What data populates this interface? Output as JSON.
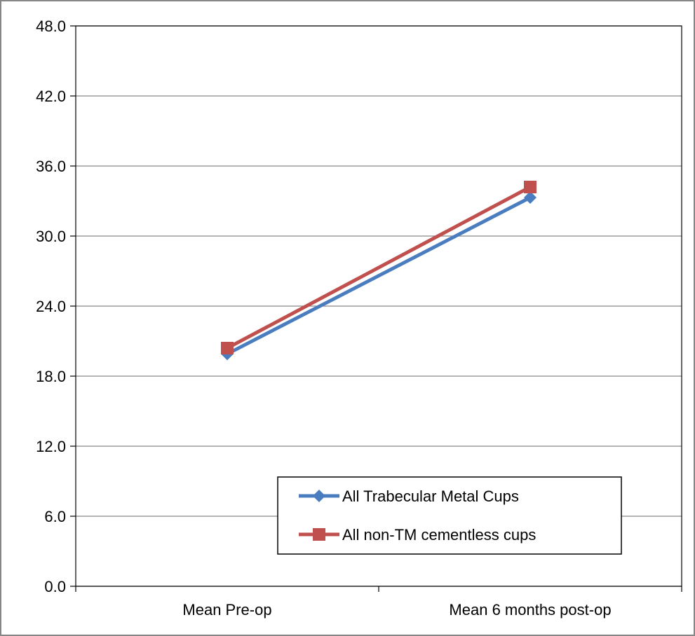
{
  "chart_data": {
    "type": "line",
    "categories": [
      "Mean Pre-op",
      "Mean 6 months post-op"
    ],
    "series": [
      {
        "name": "All Trabecular Metal Cups",
        "values": [
          19.9,
          33.3
        ],
        "color": "#4a7dbf",
        "marker": "diamond"
      },
      {
        "name": "All non-TM cementless cups",
        "values": [
          20.4,
          34.2
        ],
        "color": "#c0504d",
        "marker": "square"
      }
    ],
    "ylim": [
      0,
      48
    ],
    "yticks": [
      "0.0",
      "6.0",
      "12.0",
      "18.0",
      "24.0",
      "30.0",
      "36.0",
      "42.0",
      "48.0"
    ],
    "grid": true,
    "legend_position": "bottom-right"
  }
}
